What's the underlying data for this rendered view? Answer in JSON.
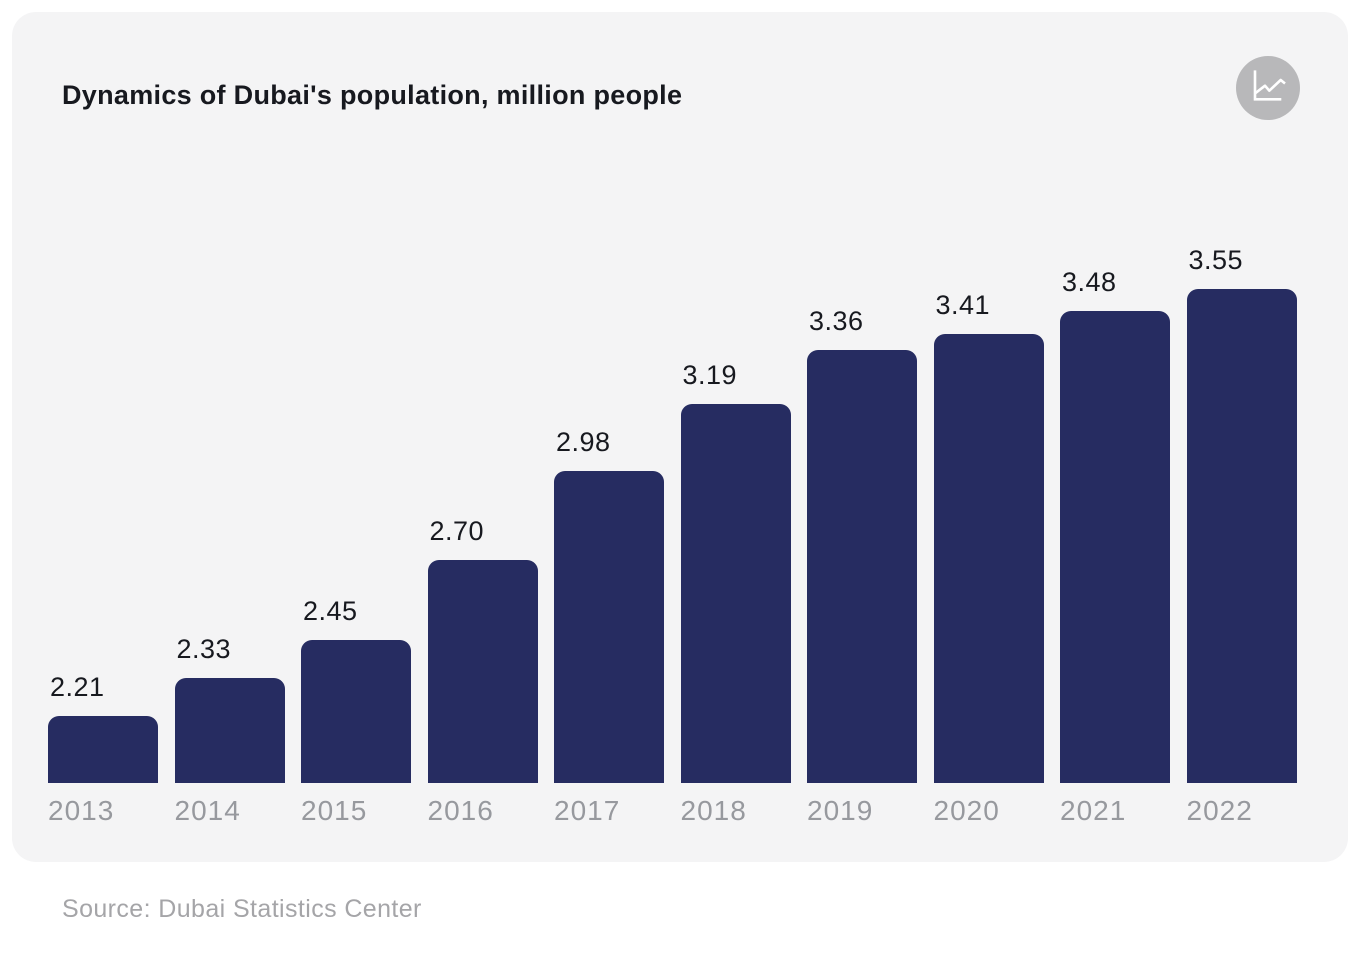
{
  "header": {
    "title": "Dynamics of Dubai's population, million people",
    "icon": "line-chart-icon"
  },
  "footer": {
    "source": "Source: Dubai Statistics Center"
  },
  "colors": {
    "page_bg": "#ffffff",
    "card_bg": "#f4f4f5",
    "bar": "#262c61",
    "title_text": "#17191f",
    "value_label": "#17191f",
    "year_label": "#97999e",
    "source_text": "#a5a5a8",
    "icon_circle": "#b8b8ba",
    "icon_glyph": "#ffffff"
  },
  "chart_data": {
    "type": "bar",
    "title": "Dynamics of Dubai's population, million people",
    "categories": [
      "2013",
      "2014",
      "2015",
      "2016",
      "2017",
      "2018",
      "2019",
      "2020",
      "2021",
      "2022"
    ],
    "values": [
      2.21,
      2.33,
      2.45,
      2.7,
      2.98,
      3.19,
      3.36,
      3.41,
      3.48,
      3.55
    ],
    "value_labels": [
      "2.21",
      "2.33",
      "2.45",
      "2.70",
      "2.98",
      "3.19",
      "3.36",
      "3.41",
      "3.48",
      "3.55"
    ],
    "xlabel": "",
    "ylabel": "",
    "ylim": [
      2.0,
      3.55
    ],
    "grid": false,
    "legend": false,
    "value_labels_position": "above-bars",
    "source": "Source: Dubai Statistics Center"
  }
}
